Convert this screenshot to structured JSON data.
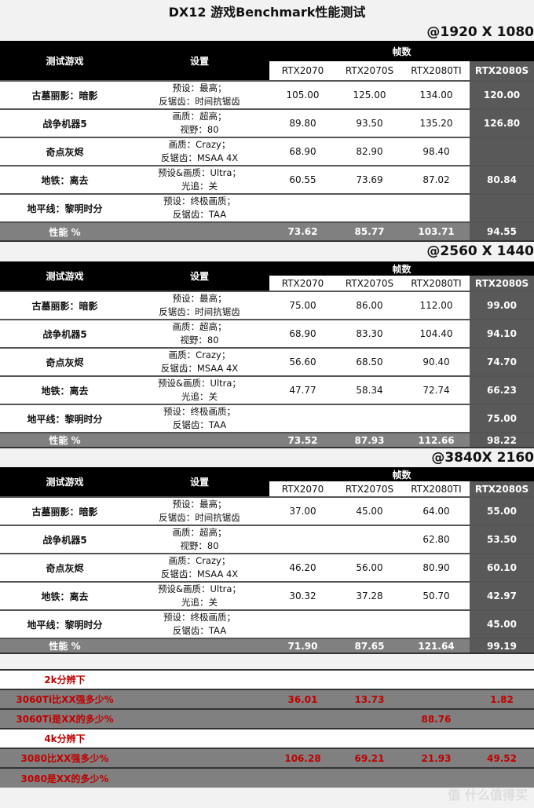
{
  "title": "DX12 游戏Benchmark性能测试",
  "headers": {
    "game": "测试游戏",
    "settings": "设置",
    "fps": "帧数",
    "gpus": [
      "RTX2070",
      "RTX2070S",
      "RTX2080TI",
      "RTX2080S"
    ]
  },
  "sections": [
    {
      "resolution": "@1920 X 1080",
      "rows": [
        {
          "game": "古墓丽影：暗影",
          "settings": [
            "预设：最高；",
            "反锯齿：时间抗锯齿"
          ],
          "values": [
            "105.00",
            "125.00",
            "134.00",
            "120.00"
          ]
        },
        {
          "game": "战争机器5",
          "settings": [
            "画质：超高；",
            "视野：80"
          ],
          "values": [
            "89.80",
            "93.50",
            "135.20",
            "126.80"
          ]
        },
        {
          "game": "奇点灰烬",
          "settings": [
            "画质：Crazy；",
            "反锯齿：MSAA 4X"
          ],
          "values": [
            "68.90",
            "82.90",
            "98.40",
            ""
          ]
        },
        {
          "game": "地铁：离去",
          "settings": [
            "预设&画质：Ultra；",
            "光追：关"
          ],
          "values": [
            "60.55",
            "73.69",
            "87.02",
            "80.84"
          ]
        },
        {
          "game": "地平线：黎明时分",
          "settings": [
            "预设：终极画质；",
            "反锯齿：TAA"
          ],
          "values": [
            "",
            "",
            "",
            ""
          ]
        }
      ],
      "perf": {
        "label": "性能 %",
        "values": [
          "73.62",
          "85.77",
          "103.71",
          "94.55"
        ]
      }
    },
    {
      "resolution": "@2560 X 1440",
      "rows": [
        {
          "game": "古墓丽影：暗影",
          "settings": [
            "预设：最高；",
            "反锯齿：时间抗锯齿"
          ],
          "values": [
            "75.00",
            "86.00",
            "112.00",
            "99.00"
          ]
        },
        {
          "game": "战争机器5",
          "settings": [
            "画质：超高；",
            "视野：80"
          ],
          "values": [
            "68.90",
            "83.30",
            "104.40",
            "94.10"
          ]
        },
        {
          "game": "奇点灰烬",
          "settings": [
            "画质：Crazy；",
            "反锯齿：MSAA 4X"
          ],
          "values": [
            "56.60",
            "68.50",
            "90.40",
            "74.70"
          ]
        },
        {
          "game": "地铁：离去",
          "settings": [
            "预设&画质：Ultra；",
            "光追：关"
          ],
          "values": [
            "47.77",
            "58.34",
            "72.74",
            "66.23"
          ]
        },
        {
          "game": "地平线：黎明时分",
          "settings": [
            "预设：终极画质；",
            "反锯齿：TAA"
          ],
          "values": [
            "",
            "",
            "",
            "75.00"
          ]
        }
      ],
      "perf": {
        "label": "性能 %",
        "values": [
          "73.52",
          "87.93",
          "112.66",
          "98.22"
        ]
      }
    },
    {
      "resolution": "@3840X 2160",
      "rows": [
        {
          "game": "古墓丽影：暗影",
          "settings": [
            "预设：最高；",
            "反锯齿：时间抗锯齿"
          ],
          "values": [
            "37.00",
            "45.00",
            "64.00",
            "55.00"
          ]
        },
        {
          "game": "战争机器5",
          "settings": [
            "画质：超高；",
            "视野：80"
          ],
          "values": [
            "",
            "",
            "62.80",
            "53.50"
          ]
        },
        {
          "game": "奇点灰烬",
          "settings": [
            "画质：Crazy；",
            "反锯齿：MSAA 4X"
          ],
          "values": [
            "46.20",
            "56.00",
            "80.90",
            "60.10"
          ]
        },
        {
          "game": "地铁：离去",
          "settings": [
            "预设&画质：Ultra；",
            "光追：关"
          ],
          "values": [
            "30.32",
            "37.28",
            "50.70",
            "42.97"
          ]
        },
        {
          "game": "地平线：黎明时分",
          "settings": [
            "预设：终极画质；",
            "反锯齿：TAA"
          ],
          "values": [
            "",
            "",
            "",
            "45.00"
          ]
        }
      ],
      "perf": {
        "label": "性能 %",
        "values": [
          "71.90",
          "87.65",
          "121.64",
          "99.19"
        ]
      }
    }
  ],
  "comparison": [
    {
      "label": "2k分辨下",
      "values": [
        "",
        "",
        "",
        ""
      ],
      "style": "w"
    },
    {
      "label": "3060Ti比XX强多少%",
      "values": [
        "36.01",
        "13.73",
        "",
        "1.82"
      ],
      "style": "g"
    },
    {
      "label": "3060Ti是XX的多少%",
      "values": [
        "",
        "",
        "88.76",
        ""
      ],
      "style": "g"
    },
    {
      "label": "4k分辨下",
      "values": [
        "",
        "",
        "",
        ""
      ],
      "style": "w"
    },
    {
      "label": "3080比XX强多少%",
      "values": [
        "106.28",
        "69.21",
        "21.93",
        "49.52"
      ],
      "style": "g"
    },
    {
      "label": "3080是XX的多少%",
      "values": [
        "",
        "",
        "",
        ""
      ],
      "style": "g"
    }
  ],
  "watermark": "值 什么值得买"
}
